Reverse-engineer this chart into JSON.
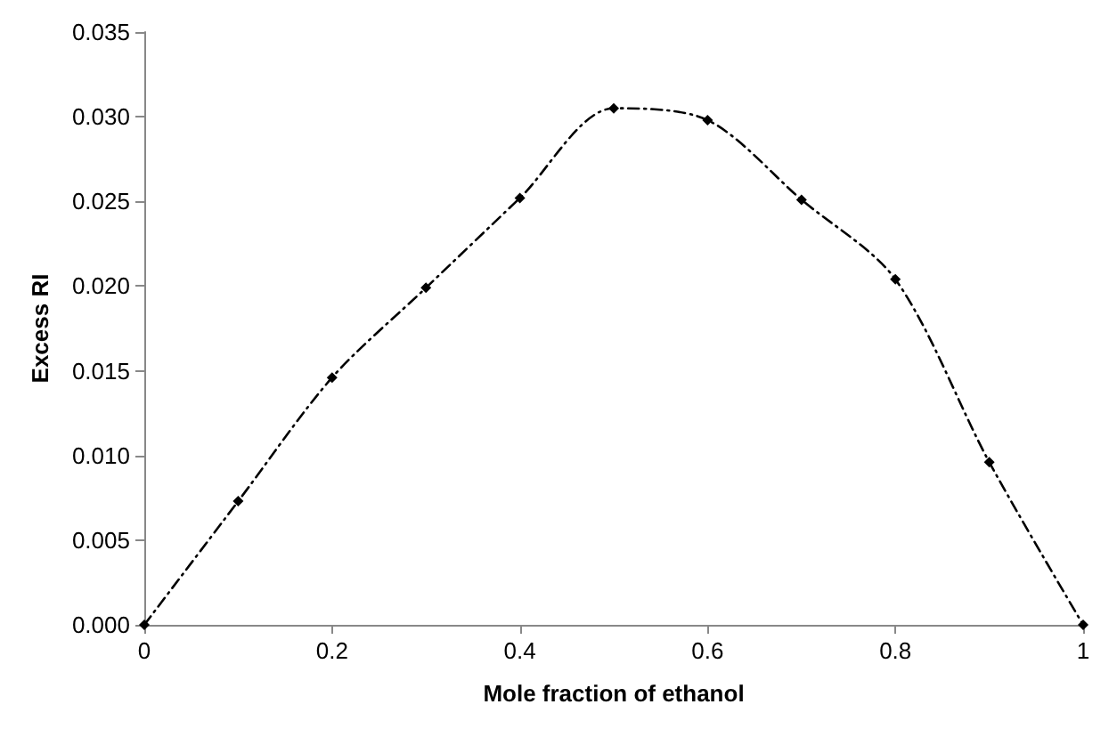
{
  "chart_data": {
    "type": "line",
    "xlabel": "Mole fraction of ethanol",
    "ylabel": "Excess RI",
    "x": [
      0,
      0.1,
      0.2,
      0.3,
      0.4,
      0.5,
      0.6,
      0.7,
      0.8,
      0.9,
      1
    ],
    "series": [
      {
        "color": "#000000",
        "values": [
          0,
          0.0073,
          0.0146,
          0.0199,
          0.0252,
          0.0305,
          0.0298,
          0.0251,
          0.0204,
          0.0096,
          0
        ]
      }
    ],
    "xlim": [
      0,
      1
    ],
    "xticks": [
      0,
      0.2,
      0.4,
      0.6,
      0.8,
      1
    ],
    "ylim": [
      0,
      0.035
    ],
    "yticks": [
      {
        "value": 0,
        "label": "0.000"
      },
      {
        "value": 0.005,
        "label": "0.005"
      },
      {
        "value": 0.01,
        "label": "0.010"
      },
      {
        "value": 0.015,
        "label": "0.015"
      },
      {
        "value": 0.02,
        "label": "0.020"
      },
      {
        "value": 0.025,
        "label": "0.025"
      },
      {
        "value": 0.03,
        "label": "0.030"
      },
      {
        "value": 0.035,
        "label": "0.035"
      }
    ],
    "grid": false,
    "marker": "diamond",
    "line_style": "dashed"
  }
}
